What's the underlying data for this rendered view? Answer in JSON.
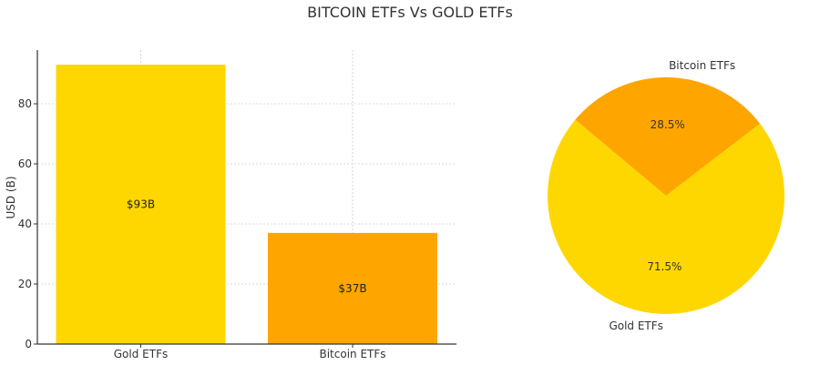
{
  "title": "BITCOIN ETFs Vs GOLD ETFs",
  "chart_data": [
    {
      "type": "bar",
      "title": "",
      "categories": [
        "Gold ETFs",
        "Bitcoin ETFs"
      ],
      "values": [
        93,
        37
      ],
      "data_labels": [
        "$93B",
        "$37B"
      ],
      "colors": [
        "#FFD700",
        "#FFA500"
      ],
      "xlabel": "",
      "ylabel": "USD (B)",
      "ylim": [
        0,
        97.65
      ],
      "yticks": [
        0,
        20,
        40,
        60,
        80
      ],
      "grid": true
    },
    {
      "type": "pie",
      "labels": [
        "Gold ETFs",
        "Bitcoin ETFs"
      ],
      "values": [
        93,
        37
      ],
      "percent_labels": [
        "71.5%",
        "28.5%"
      ],
      "colors": [
        "#FFD700",
        "#FFA500"
      ],
      "startangle": 140
    }
  ]
}
